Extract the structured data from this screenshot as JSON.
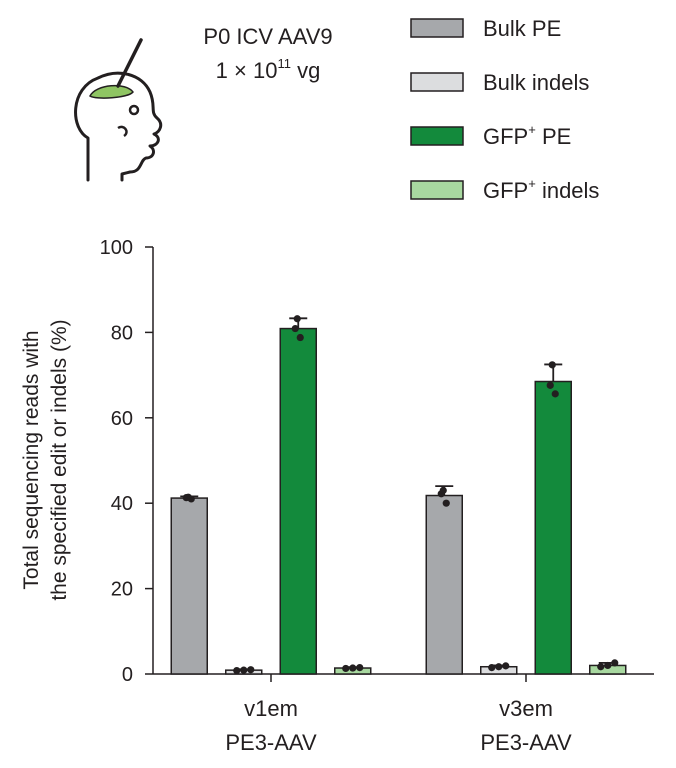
{
  "header": {
    "line1": "P0 ICV AAV9",
    "line2_base": "1 × 10",
    "line2_exp": "11",
    "line2_unit": " vg"
  },
  "legend": [
    {
      "main": "Bulk PE",
      "sup": "",
      "rest": "",
      "color": "#a6a8ab"
    },
    {
      "main": "Bulk indels",
      "sup": "",
      "rest": "",
      "color": "#dcdddf"
    },
    {
      "main": "GFP",
      "sup": "+",
      "rest": " PE",
      "color": "#138a3c"
    },
    {
      "main": "GFP",
      "sup": "+",
      "rest": " indels",
      "color": "#a8d8a0"
    }
  ],
  "chart_data": {
    "type": "bar",
    "categories": [
      "v1em|PE3-AAV",
      "v3em|PE3-AAV"
    ],
    "series": [
      {
        "name": "Bulk PE",
        "color": "#a6a8ab",
        "values": [
          41.2,
          41.8
        ],
        "err": [
          0.4,
          2.2
        ],
        "points": [
          [
            41.0,
            41.3,
            41.4
          ],
          [
            40.0,
            42.2,
            43.0
          ]
        ]
      },
      {
        "name": "Bulk indels",
        "color": "#dcdddf",
        "values": [
          0.9,
          1.7
        ],
        "err": [
          0.2,
          0.3
        ],
        "points": [
          [
            0.8,
            0.9,
            1.0
          ],
          [
            1.5,
            1.7,
            1.9
          ]
        ]
      },
      {
        "name": "GFP+ PE",
        "color": "#138a3c",
        "values": [
          80.9,
          68.5
        ],
        "err": [
          2.4,
          4.0
        ],
        "points": [
          [
            78.8,
            80.9,
            83.2
          ],
          [
            65.6,
            67.6,
            72.4
          ]
        ]
      },
      {
        "name": "GFP+ indels",
        "color": "#a8d8a0",
        "values": [
          1.4,
          2.0
        ],
        "err": [
          0.2,
          0.6
        ],
        "points": [
          [
            1.3,
            1.4,
            1.5
          ],
          [
            1.7,
            2.0,
            2.6
          ]
        ]
      }
    ],
    "ylabel_line1": "Total sequencing reads with",
    "ylabel_line2": "the specified edit or indels (%)",
    "ylim": [
      0,
      100
    ],
    "yticks": [
      "0",
      "20",
      "40",
      "60",
      "80",
      "100"
    ],
    "grid": false,
    "legend_position": "top-right"
  }
}
